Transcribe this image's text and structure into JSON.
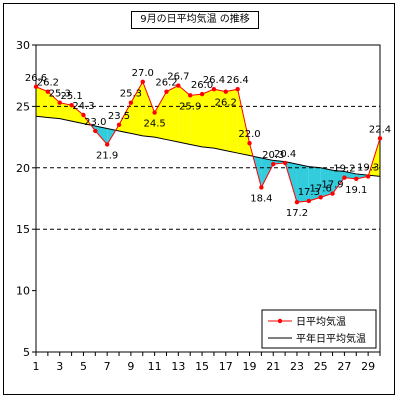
{
  "chart_data": {
    "type": "line",
    "title": "9月の日平均気温 の推移",
    "xlabel": "",
    "ylabel": "",
    "x": [
      1,
      2,
      3,
      4,
      5,
      6,
      7,
      8,
      9,
      10,
      11,
      12,
      13,
      14,
      15,
      16,
      17,
      18,
      19,
      20,
      21,
      22,
      23,
      24,
      25,
      26,
      27,
      28,
      29,
      30
    ],
    "xlim": [
      1,
      30
    ],
    "ylim": [
      5,
      30
    ],
    "x_ticks": [
      "1",
      "3",
      "5",
      "7",
      "9",
      "11",
      "13",
      "15",
      "17",
      "19",
      "21",
      "23",
      "25",
      "27",
      "29"
    ],
    "y_ticks": [
      "5",
      "10",
      "15",
      "20",
      "25",
      "30"
    ],
    "gridlines": "dashed horizontal at 15, 20, 25",
    "fill_above_normal_color": "#ffff00",
    "fill_below_normal_color": "#33ccdd",
    "series": [
      {
        "name": "日平均気温",
        "color": "#ff0000",
        "marker": "circle",
        "values": [
          26.6,
          26.2,
          25.3,
          25.1,
          24.3,
          23.0,
          21.9,
          23.5,
          25.3,
          27.0,
          24.5,
          26.2,
          26.7,
          25.9,
          26.0,
          26.4,
          26.2,
          26.4,
          22.0,
          18.4,
          20.3,
          20.4,
          17.2,
          17.3,
          17.6,
          17.9,
          19.2,
          19.1,
          19.3,
          22.4
        ]
      },
      {
        "name": "平年日平均気温",
        "color": "#000000",
        "marker": "none",
        "values": [
          24.2,
          24.1,
          24.0,
          23.8,
          23.6,
          23.4,
          23.2,
          23.0,
          22.8,
          22.6,
          22.5,
          22.3,
          22.1,
          21.9,
          21.7,
          21.6,
          21.4,
          21.2,
          21.0,
          20.8,
          20.6,
          20.5,
          20.3,
          20.1,
          20.0,
          19.8,
          19.7,
          19.5,
          19.4,
          19.3
        ]
      }
    ],
    "legend": {
      "placement": "bottom-right"
    }
  }
}
